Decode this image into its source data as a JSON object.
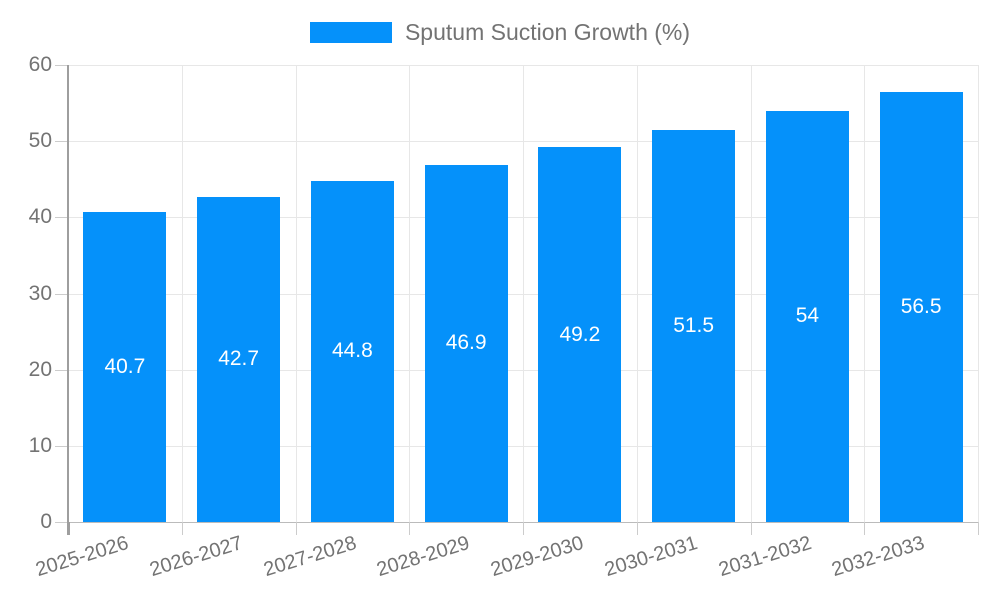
{
  "legend": {
    "label": "Sputum Suction Growth (%)",
    "swatch_color": "#0591fa"
  },
  "chart_data": {
    "type": "bar",
    "title": "Sputum Suction Growth (%)",
    "categories": [
      "2025-2026",
      "2026-2027",
      "2027-2028",
      "2028-2029",
      "2029-2030",
      "2030-2031",
      "2031-2032",
      "2032-2033"
    ],
    "values": [
      40.7,
      42.7,
      44.8,
      46.9,
      49.2,
      51.5,
      54,
      56.5
    ],
    "series_name": "Sputum Suction Growth (%)",
    "xlabel": "",
    "ylabel": "",
    "ylim": [
      0,
      60
    ],
    "y_ticks": [
      0,
      10,
      20,
      30,
      40,
      50,
      60
    ],
    "grid": "on",
    "legend_position": "top-center",
    "x_label_rotation_deg": -17,
    "bar_color": "#0591fa",
    "data_label_color": "#ffffff",
    "axis_text_color": "#737373",
    "gridline_color": "#e7e7e7",
    "axis_line_color": "#9e9e9e"
  }
}
